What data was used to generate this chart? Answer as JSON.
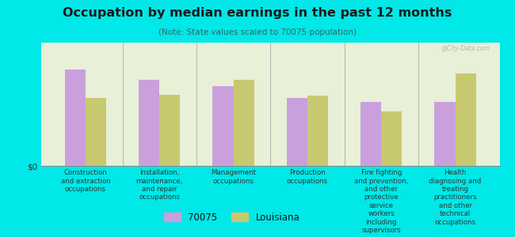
{
  "title": "Occupation by median earnings in the past 12 months",
  "subtitle": "(Note: State values scaled to 70075 population)",
  "categories": [
    "Construction\nand extraction\noccupations",
    "Installation,\nmaintenance,\nand repair\noccupations",
    "Management\noccupations",
    "Production\noccupations",
    "Fire fighting\nand prevention,\nand other\nprotective\nservice\nworkers\nincluding\nsupervisors",
    "Health\ndiagnosing and\ntreating\npractitioners\nand other\ntechnical\noccupations"
  ],
  "values_70075": [
    0.78,
    0.7,
    0.65,
    0.55,
    0.52,
    0.52
  ],
  "values_louisiana": [
    0.55,
    0.58,
    0.7,
    0.57,
    0.44,
    0.75
  ],
  "color_70075": "#c9a0dc",
  "color_louisiana": "#c8c870",
  "background_color": "#00e8e8",
  "plot_bg_color": "#e8f0d8",
  "watermark": "@City-Data.com",
  "legend_label_70075": "70075",
  "legend_label_louisiana": "Louisiana",
  "ylabel": "$0",
  "bar_width": 0.28,
  "ylim": [
    0,
    1.0
  ]
}
